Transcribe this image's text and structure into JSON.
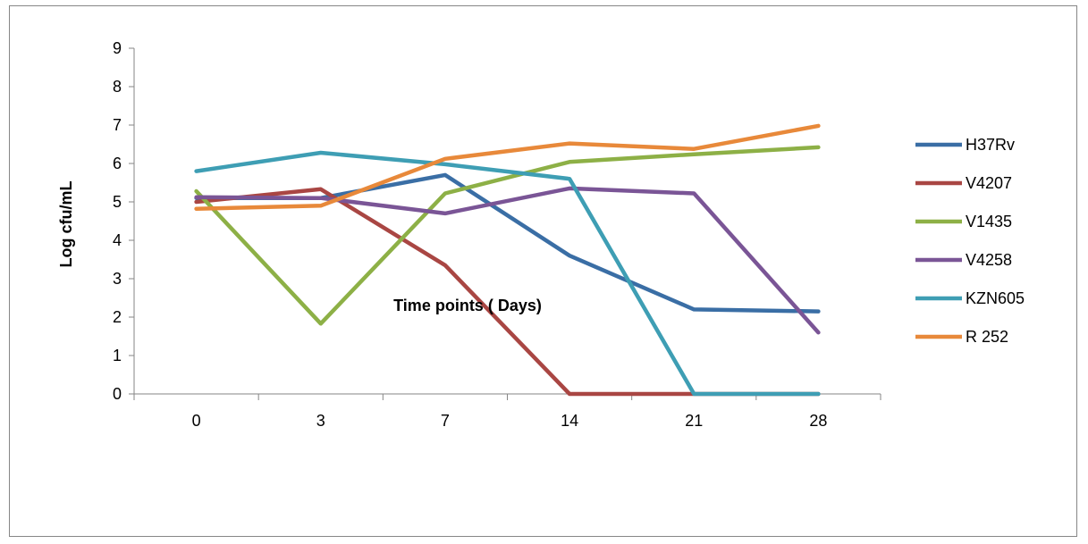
{
  "chart_data": {
    "type": "line",
    "title": "",
    "xlabel": "Time points ( Days)",
    "ylabel": "Log cfu/mL",
    "categories": [
      "0",
      "3",
      "7",
      "14",
      "21",
      "28"
    ],
    "ylim": [
      0,
      9
    ],
    "yticks": [
      "0",
      "1",
      "2",
      "3",
      "4",
      "5",
      "6",
      "7",
      "8",
      "9"
    ],
    "grid": false,
    "legend_position": "right",
    "series": [
      {
        "name": "H37Rv",
        "color": "#3A6EA5",
        "values": [
          5.1,
          5.1,
          5.7,
          3.6,
          2.2,
          2.15
        ]
      },
      {
        "name": "V4207",
        "color": "#A94643",
        "values": [
          5.0,
          5.33,
          3.35,
          0,
          0,
          0
        ]
      },
      {
        "name": "V1435",
        "color": "#8DB046",
        "values": [
          5.28,
          1.83,
          5.22,
          6.04,
          6.24,
          6.42
        ]
      },
      {
        "name": "V4258",
        "color": "#7A5596",
        "values": [
          5.12,
          5.1,
          4.7,
          5.35,
          5.22,
          1.6
        ]
      },
      {
        "name": "KZN605",
        "color": "#3E9EB4",
        "values": [
          5.8,
          6.28,
          5.98,
          5.6,
          0,
          0
        ]
      },
      {
        "name": "R 252",
        "color": "#E8893A",
        "values": [
          4.82,
          4.9,
          6.12,
          6.52,
          6.38,
          6.98
        ]
      }
    ]
  }
}
